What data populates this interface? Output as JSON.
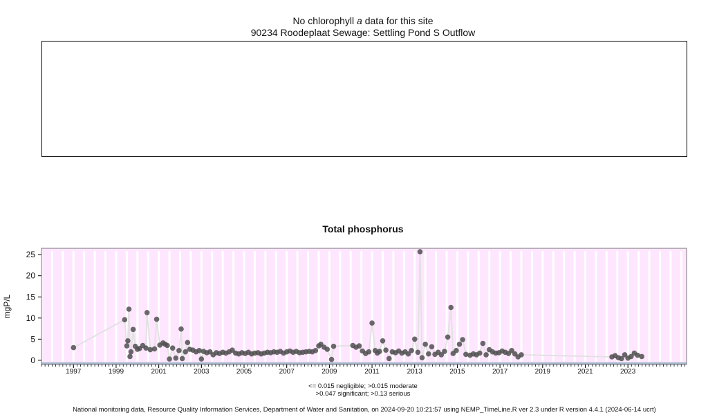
{
  "header": {
    "no_data_prefix": "No chlorophyll ",
    "no_data_italic": "a",
    "no_data_suffix": " data for this site",
    "site": "90234 Roodeplaat Sewage: Settling Pond S Outflow"
  },
  "legend": {
    "line1": "<= 0.015 negligible; >0.015 moderate",
    "line2": ">0.047 significant; >0.13 serious"
  },
  "footer": "National monitoring data, Resource Quality Information Services, Department of Water and Sanitation, on 2024-09-20 10:21:57 using NEMP_TimeLine.R ver 2.3 under R version 4.4.1 (2024-06-14 ucrt)",
  "colors": {
    "panel_bg": "#ffe6ff",
    "gridline": "#ffffff",
    "points": "#505050",
    "threshold_band": "#a3b7cc",
    "connect_line": "#e2e2e2"
  },
  "chart_data": {
    "type": "scatter",
    "title": "Total phosphorus",
    "ylabel": "mgP/L",
    "xlim": [
      1996.0,
      2026.25
    ],
    "ylim": [
      -1.0,
      26.5
    ],
    "x_ticks": [
      "1997",
      "1999",
      "2001",
      "2003",
      "2005",
      "2007",
      "2009",
      "2011",
      "2013",
      "2015",
      "2017",
      "2019",
      "2021",
      "2023"
    ],
    "y_ticks": [
      "0",
      "5",
      "10",
      "15",
      "20",
      "25"
    ],
    "grid": true,
    "series": [
      {
        "x": [
          1997.5,
          1999.9,
          2000.0,
          2000.05,
          2000.1,
          2000.15,
          2000.2,
          2000.3,
          2000.4,
          2000.5,
          2000.6,
          2000.75,
          2000.9,
          2000.95,
          2001.1,
          2001.3,
          2001.4,
          2001.55,
          2001.7,
          2001.8,
          2001.9,
          2002.0,
          2002.15,
          2002.3,
          2002.45,
          2002.55,
          2002.6,
          2002.75,
          2002.85,
          2002.95,
          2003.1,
          2003.25,
          2003.4,
          2003.5,
          2003.6,
          2003.75,
          2003.9,
          2004.05,
          2004.2,
          2004.35,
          2004.5,
          2004.65,
          2004.8,
          2004.95,
          2005.1,
          2005.25,
          2005.4,
          2005.55,
          2005.7,
          2005.85,
          2006.0,
          2006.15,
          2006.3,
          2006.45,
          2006.6,
          2006.75,
          2006.9,
          2007.05,
          2007.2,
          2007.35,
          2007.5,
          2007.65,
          2007.8,
          2007.95,
          2008.1,
          2008.25,
          2008.4,
          2008.55,
          2008.7,
          2008.85,
          2009.0,
          2009.1,
          2009.25,
          2009.4,
          2009.6,
          2009.7,
          2010.6,
          2010.75,
          2010.9,
          2011.05,
          2011.2,
          2011.35,
          2011.5,
          2011.65,
          2011.75,
          2011.85,
          2012.0,
          2012.15,
          2012.3,
          2012.45,
          2012.6,
          2012.75,
          2012.9,
          2013.05,
          2013.2,
          2013.35,
          2013.5,
          2013.65,
          2013.75,
          2013.85,
          2014.0,
          2014.15,
          2014.3,
          2014.45,
          2014.6,
          2014.75,
          2014.9,
          2015.05,
          2015.2,
          2015.3,
          2015.45,
          2015.6,
          2015.75,
          2015.9,
          2016.1,
          2016.25,
          2016.4,
          2016.55,
          2016.7,
          2016.85,
          2017.0,
          2017.15,
          2017.3,
          2017.45,
          2017.6,
          2017.75,
          2017.9,
          2018.05,
          2018.2,
          2018.35,
          2018.5,
          2022.75,
          2022.9,
          2023.05,
          2023.2,
          2023.35,
          2023.5,
          2023.65,
          2023.8,
          2023.95,
          2024.15
        ],
        "y": [
          3.0,
          9.6,
          3.4,
          4.6,
          12.1,
          0.9,
          2.0,
          7.3,
          3.3,
          2.6,
          2.8,
          3.5,
          2.9,
          11.3,
          2.5,
          2.7,
          9.7,
          3.6,
          4.1,
          3.8,
          3.5,
          0.3,
          2.9,
          0.5,
          2.3,
          7.4,
          0.4,
          2.0,
          4.2,
          2.6,
          2.4,
          2.0,
          2.3,
          0.3,
          2.1,
          1.8,
          2.0,
          1.3,
          1.8,
          1.6,
          1.9,
          1.7,
          2.0,
          2.4,
          1.7,
          1.5,
          1.8,
          1.6,
          1.9,
          1.5,
          1.7,
          1.8,
          1.5,
          1.7,
          1.9,
          1.8,
          2.0,
          1.9,
          2.1,
          1.7,
          2.0,
          2.2,
          1.9,
          2.1,
          1.8,
          1.9,
          2.0,
          2.1,
          2.0,
          2.3,
          3.4,
          3.8,
          3.1,
          2.6,
          0.2,
          3.3,
          3.5,
          3.1,
          3.4,
          2.2,
          1.6,
          2.0,
          8.8,
          2.3,
          1.7,
          2.1,
          4.6,
          2.4,
          0.4,
          2.0,
          1.8,
          2.2,
          1.7,
          2.0,
          1.5,
          2.3,
          5.0,
          1.9,
          25.7,
          0.6,
          3.8,
          1.5,
          3.2,
          1.4,
          1.9,
          1.3,
          2.1,
          5.5,
          12.5,
          1.6,
          2.3,
          3.8,
          4.9,
          1.4,
          1.2,
          1.5,
          1.3,
          1.7,
          4.0,
          1.3,
          2.5,
          2.0,
          1.7,
          1.8,
          2.2,
          1.9,
          1.6,
          2.3,
          1.5,
          0.8,
          1.3,
          0.8,
          1.1,
          0.6,
          0.4,
          1.3,
          0.5,
          0.9,
          1.7,
          1.2,
          0.9
        ]
      }
    ]
  }
}
